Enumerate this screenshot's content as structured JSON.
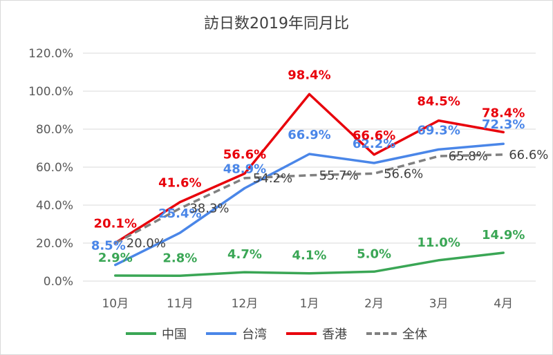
{
  "chart_data": {
    "type": "line",
    "title": "訪日数2019年同月比",
    "categories": [
      "10月",
      "11月",
      "12月",
      "1月",
      "2月",
      "3月",
      "4月"
    ],
    "ylim": [
      0,
      120
    ],
    "yticks": [
      "0.0%",
      "20.0%",
      "40.0%",
      "60.0%",
      "80.0%",
      "100.0%",
      "120.0%"
    ],
    "grid": true,
    "legend_position": "bottom",
    "series": [
      {
        "name": "中国",
        "color": "#3aa655",
        "dash": false,
        "bold_labels": true,
        "values": [
          2.9,
          2.8,
          4.7,
          4.1,
          5.0,
          11.0,
          14.9
        ],
        "labels": [
          "2.9%",
          "2.8%",
          "4.7%",
          "4.1%",
          "5.0%",
          "11.0%",
          "14.9%"
        ]
      },
      {
        "name": "台湾",
        "color": "#4a86e8",
        "dash": false,
        "bold_labels": true,
        "values": [
          8.5,
          25.4,
          48.9,
          66.9,
          62.2,
          69.3,
          72.3
        ],
        "labels": [
          "8.5%",
          "25.4%",
          "48.9%",
          "66.9%",
          "62.2%",
          "69.3%",
          "72.3%"
        ]
      },
      {
        "name": "香港",
        "color": "#e8000b",
        "dash": false,
        "bold_labels": true,
        "values": [
          20.1,
          41.6,
          56.6,
          98.4,
          66.6,
          84.5,
          78.4
        ],
        "labels": [
          "20.1%",
          "41.6%",
          "56.6%",
          "98.4%",
          "66.6%",
          "84.5%",
          "78.4%"
        ]
      },
      {
        "name": "全体",
        "color": "#808080",
        "dash": true,
        "bold_labels": false,
        "values": [
          20.0,
          38.3,
          54.2,
          55.7,
          56.6,
          65.8,
          66.6
        ],
        "labels": [
          "20.0%",
          "38.3%",
          "54.2%",
          "55.7%",
          "56.6%",
          "65.8%",
          "66.6%"
        ]
      }
    ]
  }
}
